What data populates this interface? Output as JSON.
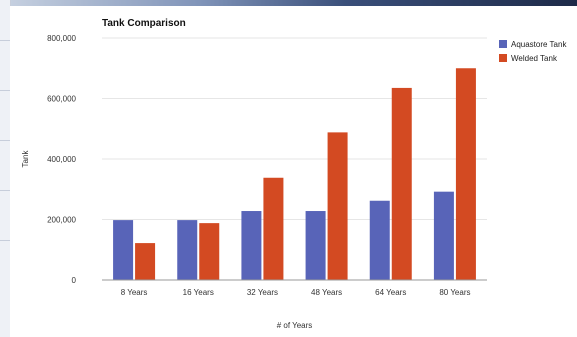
{
  "colors": {
    "series_1": "#5864b8",
    "series_2": "#d34a22",
    "grid": "#e6e6e6",
    "axis": "#999999"
  },
  "chart_data": {
    "type": "bar",
    "title": "Tank Comparison",
    "xlabel": "# of Years",
    "ylabel": "Tank",
    "categories": [
      "8 Years",
      "16 Years",
      "32 Years",
      "48 Years",
      "64 Years",
      "80 Years"
    ],
    "series": [
      {
        "name": "Aquastore Tank",
        "values": [
          198000,
          198000,
          228000,
          228000,
          262000,
          292000
        ]
      },
      {
        "name": "Welded Tank",
        "values": [
          122000,
          188000,
          338000,
          488000,
          635000,
          700000
        ]
      }
    ],
    "ylim": [
      0,
      800000
    ],
    "yticks": [
      "0",
      "200,000",
      "400,000",
      "600,000",
      "800,000"
    ],
    "grid": true,
    "legend_position": "top-right"
  }
}
